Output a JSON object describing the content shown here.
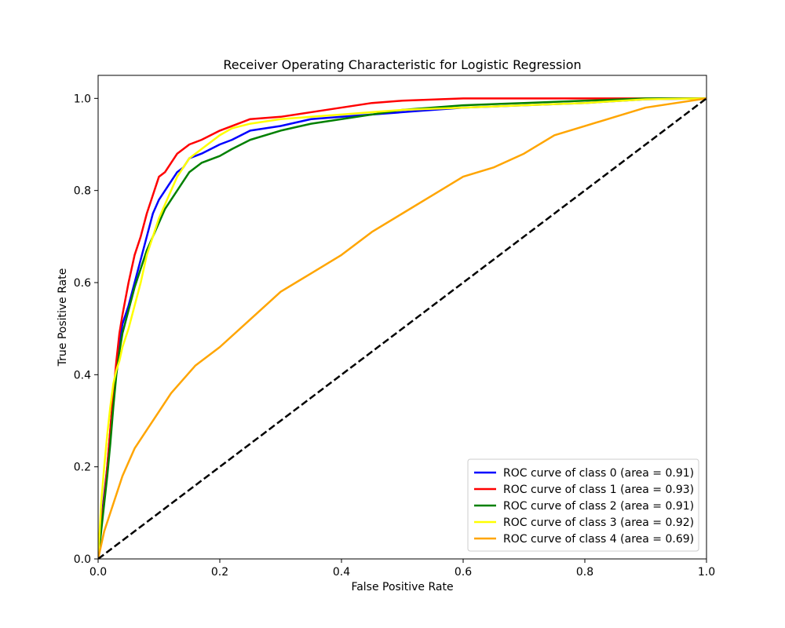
{
  "chart_data": {
    "type": "line",
    "title": "Receiver Operating Characteristic for Logistic Regression",
    "xlabel": "False Positive Rate",
    "ylabel": "True Positive Rate",
    "xlim": [
      0,
      1.0
    ],
    "ylim": [
      0,
      1.05
    ],
    "xticks": [
      "0.0",
      "0.2",
      "0.4",
      "0.6",
      "0.8",
      "1.0"
    ],
    "yticks": [
      "0.0",
      "0.2",
      "0.4",
      "0.6",
      "0.8",
      "1.0"
    ],
    "grid": false,
    "legend_position": "lower-right",
    "series": [
      {
        "name": "ROC curve of class 0 (area = 0.91)",
        "color": "#0000ff",
        "x": [
          0.0,
          0.005,
          0.01,
          0.015,
          0.02,
          0.025,
          0.03,
          0.035,
          0.04,
          0.05,
          0.06,
          0.07,
          0.08,
          0.09,
          0.1,
          0.11,
          0.12,
          0.13,
          0.14,
          0.15,
          0.17,
          0.2,
          0.22,
          0.25,
          0.3,
          0.35,
          0.4,
          0.45,
          0.5,
          0.6,
          0.7,
          0.8,
          0.9,
          1.0
        ],
        "y": [
          0.0,
          0.08,
          0.14,
          0.2,
          0.28,
          0.36,
          0.42,
          0.47,
          0.51,
          0.55,
          0.6,
          0.65,
          0.7,
          0.75,
          0.78,
          0.8,
          0.82,
          0.84,
          0.85,
          0.87,
          0.88,
          0.9,
          0.91,
          0.93,
          0.94,
          0.955,
          0.96,
          0.965,
          0.97,
          0.98,
          0.985,
          0.99,
          0.998,
          1.0
        ]
      },
      {
        "name": "ROC curve of class 1 (area = 0.93)",
        "color": "#ff0000",
        "x": [
          0.0,
          0.005,
          0.01,
          0.015,
          0.02,
          0.025,
          0.03,
          0.035,
          0.04,
          0.05,
          0.06,
          0.07,
          0.08,
          0.09,
          0.1,
          0.11,
          0.12,
          0.13,
          0.14,
          0.15,
          0.17,
          0.2,
          0.22,
          0.25,
          0.3,
          0.35,
          0.4,
          0.45,
          0.5,
          0.6,
          0.7,
          0.8,
          0.9,
          1.0
        ],
        "y": [
          0.0,
          0.07,
          0.13,
          0.2,
          0.28,
          0.36,
          0.43,
          0.49,
          0.53,
          0.6,
          0.66,
          0.7,
          0.75,
          0.79,
          0.83,
          0.84,
          0.86,
          0.88,
          0.89,
          0.9,
          0.91,
          0.93,
          0.94,
          0.955,
          0.96,
          0.97,
          0.98,
          0.99,
          0.995,
          1.0,
          1.0,
          1.0,
          1.0,
          1.0
        ]
      },
      {
        "name": "ROC curve of class 2 (area = 0.91)",
        "color": "#008000",
        "x": [
          0.0,
          0.005,
          0.01,
          0.015,
          0.02,
          0.025,
          0.03,
          0.035,
          0.04,
          0.05,
          0.06,
          0.07,
          0.08,
          0.09,
          0.1,
          0.11,
          0.12,
          0.13,
          0.14,
          0.15,
          0.17,
          0.2,
          0.22,
          0.25,
          0.3,
          0.35,
          0.4,
          0.45,
          0.5,
          0.6,
          0.7,
          0.8,
          0.9,
          1.0
        ],
        "y": [
          0.0,
          0.06,
          0.12,
          0.18,
          0.25,
          0.33,
          0.4,
          0.45,
          0.49,
          0.54,
          0.59,
          0.63,
          0.67,
          0.7,
          0.73,
          0.76,
          0.78,
          0.8,
          0.82,
          0.84,
          0.86,
          0.875,
          0.89,
          0.91,
          0.93,
          0.945,
          0.955,
          0.965,
          0.975,
          0.985,
          0.99,
          0.995,
          1.0,
          1.0
        ]
      },
      {
        "name": "ROC curve of class 3 (area = 0.92)",
        "color": "#ffff00",
        "x": [
          0.0,
          0.005,
          0.01,
          0.015,
          0.02,
          0.025,
          0.03,
          0.035,
          0.04,
          0.05,
          0.06,
          0.07,
          0.08,
          0.09,
          0.1,
          0.11,
          0.12,
          0.13,
          0.14,
          0.15,
          0.17,
          0.2,
          0.22,
          0.25,
          0.3,
          0.35,
          0.4,
          0.45,
          0.5,
          0.6,
          0.7,
          0.8,
          0.9,
          1.0
        ],
        "y": [
          0.0,
          0.12,
          0.2,
          0.27,
          0.33,
          0.38,
          0.41,
          0.43,
          0.46,
          0.5,
          0.55,
          0.6,
          0.66,
          0.7,
          0.74,
          0.77,
          0.8,
          0.83,
          0.85,
          0.87,
          0.89,
          0.92,
          0.935,
          0.945,
          0.955,
          0.96,
          0.965,
          0.97,
          0.975,
          0.98,
          0.985,
          0.99,
          0.998,
          1.0
        ]
      },
      {
        "name": "ROC curve of class 4 (area = 0.69)",
        "color": "#ffa500",
        "x": [
          0.0,
          0.01,
          0.02,
          0.03,
          0.04,
          0.05,
          0.06,
          0.08,
          0.1,
          0.12,
          0.14,
          0.16,
          0.18,
          0.2,
          0.25,
          0.3,
          0.35,
          0.4,
          0.45,
          0.5,
          0.55,
          0.6,
          0.65,
          0.7,
          0.75,
          0.8,
          0.85,
          0.9,
          0.95,
          1.0
        ],
        "y": [
          0.0,
          0.06,
          0.1,
          0.14,
          0.18,
          0.21,
          0.24,
          0.28,
          0.32,
          0.36,
          0.39,
          0.42,
          0.44,
          0.46,
          0.52,
          0.58,
          0.62,
          0.66,
          0.71,
          0.75,
          0.79,
          0.83,
          0.85,
          0.88,
          0.92,
          0.94,
          0.96,
          0.98,
          0.99,
          1.0
        ]
      },
      {
        "name": "",
        "color": "#000000",
        "dashed": true,
        "x": [
          0.0,
          1.0
        ],
        "y": [
          0.0,
          1.0
        ]
      }
    ]
  }
}
